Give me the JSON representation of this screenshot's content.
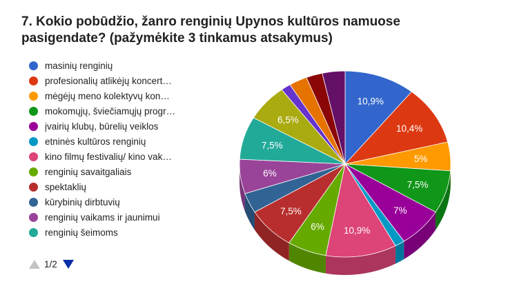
{
  "title_line1": "7. Kokio pobūdžio, žanro renginių Upynos kultūros namuose",
  "title_line2": "pasigendate? (pažymėkite 3 tinkamus atsakymus)",
  "pager": {
    "text": "1/2"
  },
  "chart_data": {
    "type": "pie",
    "style": "3d",
    "legend_position": "left",
    "legend_page": "1/2",
    "slices": [
      {
        "label": "masinių renginių",
        "value": 10.9,
        "value_label": "10,9%",
        "color": "#3366cc"
      },
      {
        "label": "profesionalių atlikėjų koncert…",
        "value": 10.4,
        "value_label": "10,4%",
        "color": "#dc3912"
      },
      {
        "label": "mėgėjų meno kolektyvų kon…",
        "value": 5,
        "value_label": "5%",
        "color": "#ff9900"
      },
      {
        "label": "mokomųjų, šviečiamųjų progr…",
        "value": 7.5,
        "value_label": "7,5%",
        "color": "#109618"
      },
      {
        "label": "įvairių klubų, būrelių veiklos",
        "value": 7,
        "value_label": "7%",
        "color": "#990099"
      },
      {
        "label": "etninės kultūros renginių",
        "value": 1.5,
        "value_label": "",
        "color": "#0099c6"
      },
      {
        "label": "kino filmų festivalių/ kino vak…",
        "value": 10.9,
        "value_label": "10,9%",
        "color": "#dd4477"
      },
      {
        "label": "renginių savaitgaliais",
        "value": 6,
        "value_label": "6%",
        "color": "#66aa00"
      },
      {
        "label": "spektaklių",
        "value": 7.5,
        "value_label": "7,5%",
        "color": "#b82e2e"
      },
      {
        "label": "kūrybinių dirbtuvių",
        "value": 3.5,
        "value_label": "",
        "color": "#316395"
      },
      {
        "label": "renginių vaikams ir jaunimui",
        "value": 6,
        "value_label": "6%",
        "color": "#994499"
      },
      {
        "label": "renginių šeimoms",
        "value": 7.5,
        "value_label": "7,5%",
        "color": "#22aa99"
      },
      {
        "label": "",
        "value": 6.5,
        "value_label": "6,5%",
        "color": "#aaaa11"
      },
      {
        "label": "",
        "value": 1.5,
        "value_label": "",
        "color": "#6633cc"
      },
      {
        "label": "",
        "value": 2.8,
        "value_label": "",
        "color": "#e67300"
      },
      {
        "label": "",
        "value": 2.5,
        "value_label": "",
        "color": "#8b0707"
      },
      {
        "label": "",
        "value": 3.5,
        "value_label": "",
        "color": "#651067"
      }
    ]
  }
}
